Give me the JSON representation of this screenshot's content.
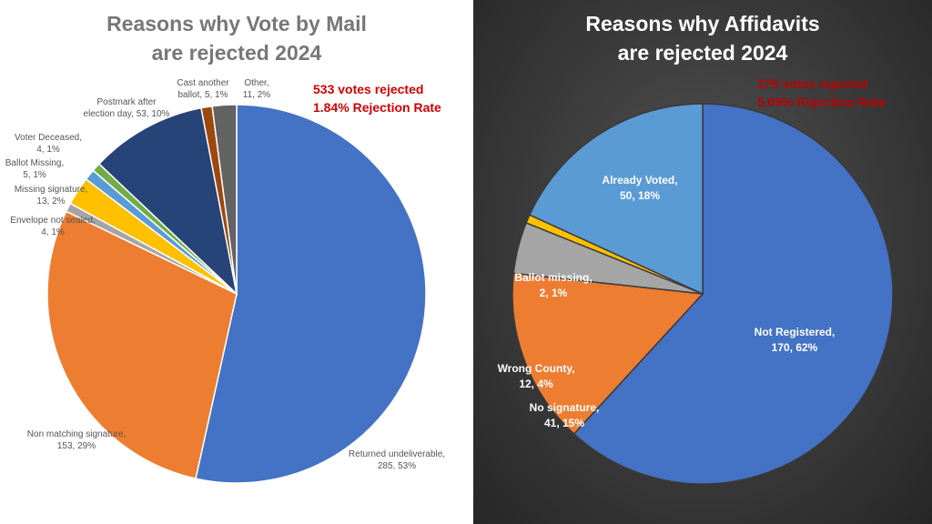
{
  "chart_data": [
    {
      "type": "pie",
      "title": [
        "Reasons why Vote by Mail",
        "are rejected 2024"
      ],
      "notes": [
        "533 votes rejected",
        "1.84% Rejection Rate"
      ],
      "slices": [
        {
          "label": "Returned undeliverable",
          "value": 285,
          "percent": "53%",
          "color": "#4472c4"
        },
        {
          "label": "Non matching signature",
          "value": 153,
          "percent": "29%",
          "color": "#ed7d31"
        },
        {
          "label": "Envelope not sealed",
          "value": 4,
          "percent": "1%",
          "color": "#a5a5a5"
        },
        {
          "label": "Missing signature",
          "value": 13,
          "percent": "2%",
          "color": "#ffc000"
        },
        {
          "label": "Ballot Missing",
          "value": 5,
          "percent": "1%",
          "color": "#5b9bd5"
        },
        {
          "label": "Voter Deceased",
          "value": 4,
          "percent": "1%",
          "color": "#70ad47"
        },
        {
          "label": "Postmark after election day",
          "value": 53,
          "percent": "10%",
          "color": "#264478"
        },
        {
          "label": "Cast another ballot",
          "value": 5,
          "percent": "1%",
          "color": "#9e480e"
        },
        {
          "label": "Other",
          "value": 11,
          "percent": "2%",
          "color": "#636363"
        }
      ]
    },
    {
      "type": "pie",
      "title": [
        "Reasons why Affidavits",
        "are rejected 2024"
      ],
      "notes": [
        "275 votes rejected",
        "5.09% Rejection Rate"
      ],
      "slices": [
        {
          "label": "Not Registered",
          "value": 170,
          "percent": "62%",
          "color": "#4472c4"
        },
        {
          "label": "No signature",
          "value": 41,
          "percent": "15%",
          "color": "#ed7d31"
        },
        {
          "label": "Wrong County",
          "value": 12,
          "percent": "4%",
          "color": "#a5a5a5"
        },
        {
          "label": "Ballot missing",
          "value": 2,
          "percent": "1%",
          "color": "#ffc000"
        },
        {
          "label": "Already Voted",
          "value": 50,
          "percent": "18%",
          "color": "#5b9bd5"
        }
      ]
    }
  ]
}
